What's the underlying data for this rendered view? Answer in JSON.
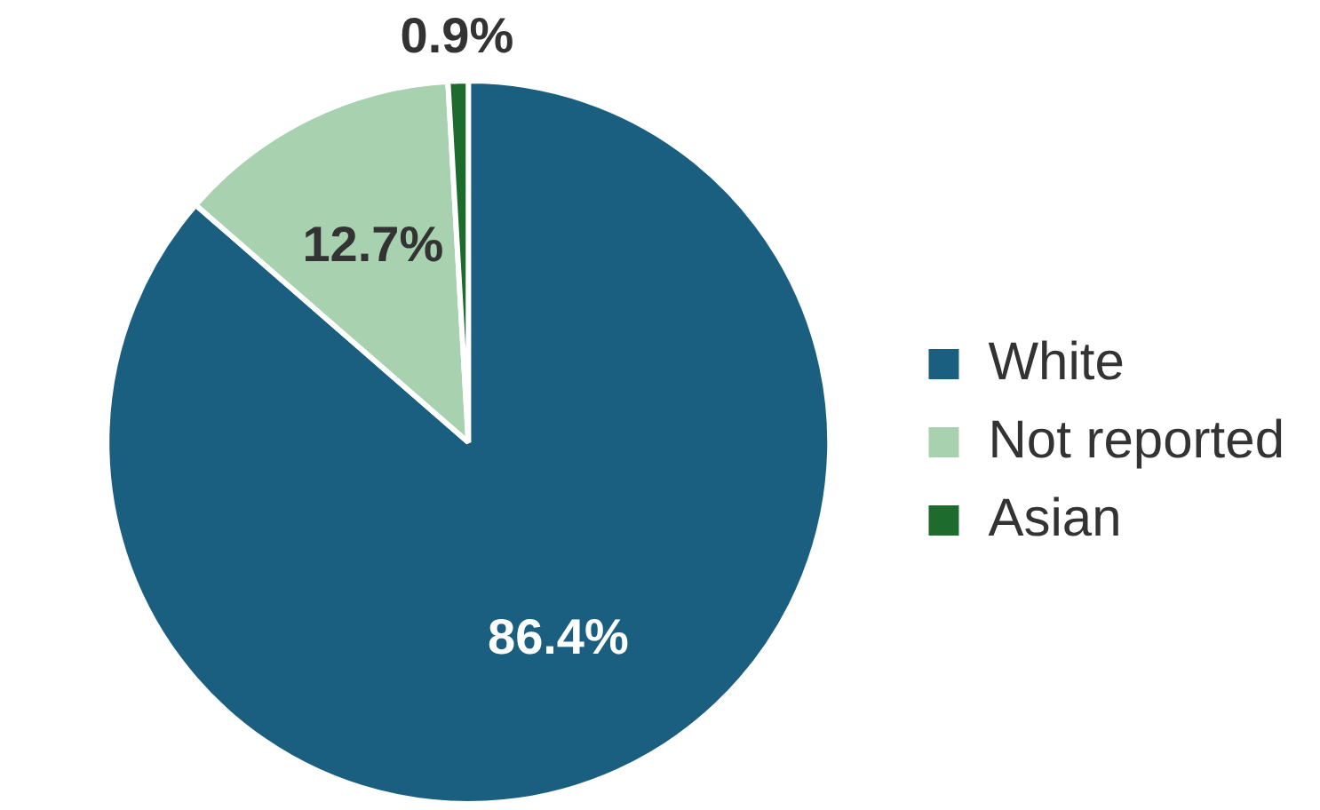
{
  "chart_data": {
    "type": "pie",
    "categories": [
      "White",
      "Not reported",
      "Asian"
    ],
    "values": [
      86.4,
      12.7,
      0.9
    ],
    "colors": [
      "#1a5e80",
      "#a8d1b0",
      "#1e6b2e"
    ],
    "value_labels": [
      "86.4%",
      "12.7%",
      "0.9%"
    ],
    "legend": "right"
  }
}
